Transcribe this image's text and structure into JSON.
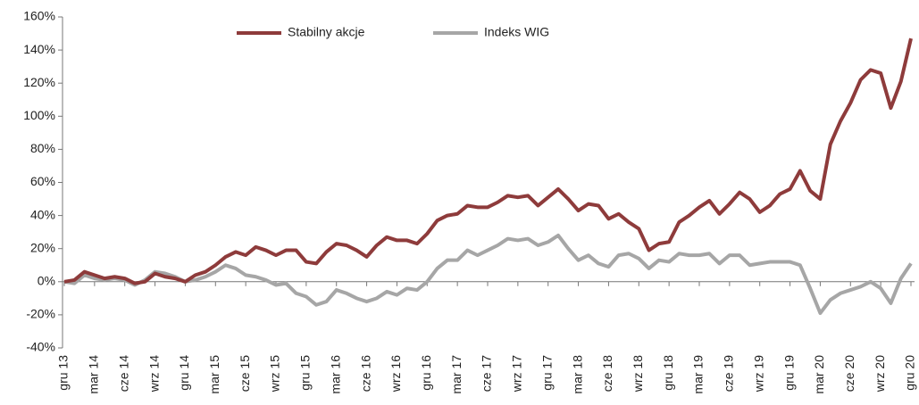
{
  "chart_data": {
    "type": "line",
    "categories": [
      "gru 13",
      null,
      null,
      "mar 14",
      null,
      null,
      "cze 14",
      null,
      null,
      "wrz 14",
      null,
      null,
      "gru 14",
      null,
      null,
      "mar 15",
      null,
      null,
      "cze 15",
      null,
      null,
      "wrz 15",
      null,
      null,
      "gru 15",
      null,
      null,
      "mar 16",
      null,
      null,
      "cze 16",
      null,
      null,
      "wrz 16",
      null,
      null,
      "gru 16",
      null,
      null,
      "mar 17",
      null,
      null,
      "cze 17",
      null,
      null,
      "wrz 17",
      null,
      null,
      "gru 17",
      null,
      null,
      "mar 18",
      null,
      null,
      "cze 18",
      null,
      null,
      "wrz 18",
      null,
      null,
      "gru 18",
      null,
      null,
      "mar 19",
      null,
      null,
      "cze 19",
      null,
      null,
      "wrz 19",
      null,
      null,
      "gru 19",
      null,
      null,
      "mar 20",
      null,
      null,
      "cze 20",
      null,
      null,
      "wrz 20",
      null,
      null,
      "gru 20"
    ],
    "series": [
      {
        "name": "Stabilny akcje",
        "color": "#8e3b3b",
        "values": [
          0,
          1,
          6,
          4,
          2,
          3,
          2,
          -1,
          0,
          5,
          3,
          2,
          0,
          4,
          6,
          10,
          15,
          18,
          16,
          21,
          19,
          16,
          19,
          19,
          12,
          11,
          18,
          23,
          22,
          19,
          15,
          22,
          27,
          25,
          25,
          23,
          29,
          37,
          40,
          41,
          46,
          45,
          45,
          48,
          52,
          51,
          52,
          46,
          51,
          56,
          50,
          43,
          47,
          46,
          38,
          41,
          36,
          32,
          19,
          23,
          24,
          36,
          40,
          45,
          49,
          41,
          47,
          54,
          50,
          42,
          46,
          53,
          56,
          67,
          55,
          50,
          83,
          97,
          108,
          122,
          128,
          126,
          105,
          121,
          147
        ]
      },
      {
        "name": "Indeks WIG",
        "color": "#a6a6a6",
        "values": [
          0,
          -1,
          4,
          2,
          1,
          2,
          1,
          -2,
          1,
          6,
          5,
          3,
          0,
          1,
          3,
          6,
          10,
          8,
          4,
          3,
          1,
          -2,
          -1,
          -7,
          -9,
          -14,
          -12,
          -5,
          -7,
          -10,
          -12,
          -10,
          -6,
          -8,
          -4,
          -5,
          0,
          8,
          13,
          13,
          19,
          16,
          19,
          22,
          26,
          25,
          26,
          22,
          24,
          28,
          20,
          13,
          16,
          11,
          9,
          16,
          17,
          14,
          8,
          13,
          12,
          17,
          16,
          16,
          17,
          11,
          16,
          16,
          10,
          11,
          12,
          12,
          12,
          10,
          -4,
          -19,
          -11,
          -7,
          -5,
          -3,
          0,
          -4,
          -13,
          2,
          11
        ]
      }
    ],
    "ylim": [
      -40,
      160
    ],
    "yticks": [
      {
        "value": -40,
        "label": "-40%"
      },
      {
        "value": -20,
        "label": "-20%"
      },
      {
        "value": 0,
        "label": "0%"
      },
      {
        "value": 20,
        "label": "20%"
      },
      {
        "value": 40,
        "label": "40%"
      },
      {
        "value": 60,
        "label": "60%"
      },
      {
        "value": 80,
        "label": "80%"
      },
      {
        "value": 100,
        "label": "100%"
      },
      {
        "value": 120,
        "label": "120%"
      },
      {
        "value": 140,
        "label": "140%"
      },
      {
        "value": 160,
        "label": "160%"
      }
    ],
    "grid": false,
    "legend": "top"
  }
}
